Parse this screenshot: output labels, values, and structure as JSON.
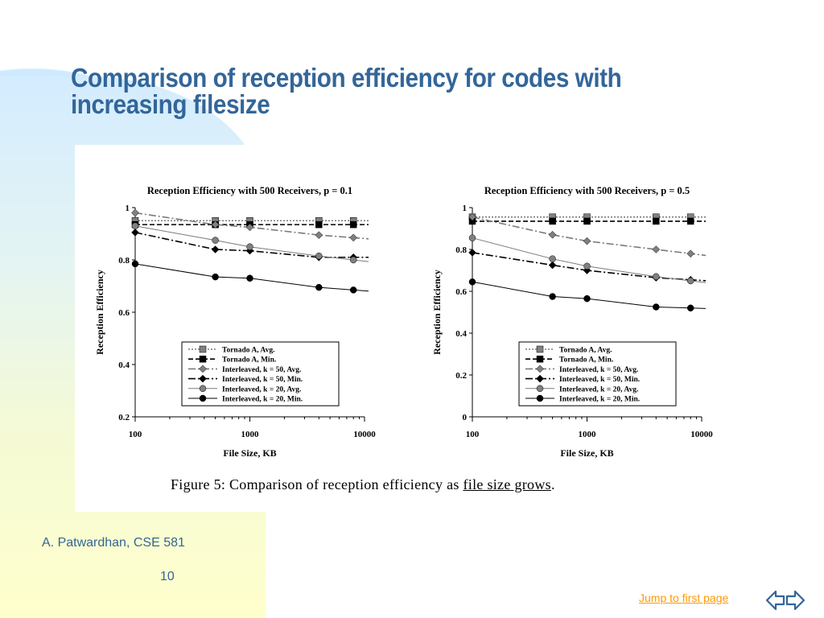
{
  "slide": {
    "title_line1": "Comparison of reception efficiency for codes with",
    "title_line2": "increasing filesize",
    "caption_prefix": "Figure 5:  Comparison of reception efficiency as ",
    "caption_link": "file size grows",
    "caption_suffix": ".",
    "author": "A. Patwardhan, CSE 581",
    "page_number": "10",
    "jump_link": "Jump to first page",
    "colors": {
      "title": "#336699",
      "link": "#ff9900",
      "nav": "#336699"
    },
    "nav_icon": "double-arrow-icon"
  },
  "chart_data": [
    {
      "type": "line",
      "title": "Reception Efficiency with 500 Receivers, p = 0.1",
      "xlabel": "File Size, KB",
      "ylabel": "Reception Efficiency",
      "xscale": "log",
      "xlim": [
        100,
        10000
      ],
      "ylim": [
        0.2,
        1
      ],
      "xticks": [
        "100",
        "1000",
        "10000"
      ],
      "yticks": [
        "0.2",
        "0.4",
        "0.6",
        "0.8",
        "1"
      ],
      "legend_position": "bottom-center",
      "x": [
        100,
        500,
        1000,
        4000,
        8000
      ],
      "series": [
        {
          "name": "Tornado A, Avg.",
          "values": [
            0.95,
            0.95,
            0.95,
            0.95,
            0.95
          ],
          "style": "dotted",
          "marker": "square",
          "color": "#808080"
        },
        {
          "name": "Tornado A, Min.",
          "values": [
            0.935,
            0.935,
            0.935,
            0.935,
            0.935
          ],
          "style": "dashed",
          "marker": "square",
          "color": "#000000"
        },
        {
          "name": "Interleaved, k = 50, Avg.",
          "values": [
            0.98,
            0.935,
            0.925,
            0.895,
            0.885
          ],
          "style": "dashdot",
          "marker": "diamond",
          "color": "#808080"
        },
        {
          "name": "Interleaved, k = 50, Min.",
          "values": [
            0.905,
            0.84,
            0.835,
            0.81,
            0.81
          ],
          "style": "dashdot",
          "marker": "diamond",
          "color": "#000000"
        },
        {
          "name": "Interleaved, k = 20, Avg.",
          "values": [
            0.93,
            0.875,
            0.85,
            0.815,
            0.8
          ],
          "style": "solid",
          "marker": "circle",
          "color": "#808080"
        },
        {
          "name": "Interleaved, k = 20, Min.",
          "values": [
            0.785,
            0.735,
            0.73,
            0.695,
            0.685
          ],
          "style": "solid",
          "marker": "circle",
          "color": "#000000"
        }
      ]
    },
    {
      "type": "line",
      "title": "Reception Efficiency with 500 Receivers, p = 0.5",
      "xlabel": "File Size, KB",
      "ylabel": "Reception Efficiency",
      "xscale": "log",
      "xlim": [
        100,
        10000
      ],
      "ylim": [
        0,
        1
      ],
      "xticks": [
        "100",
        "1000",
        "10000"
      ],
      "yticks": [
        "0",
        "0.2",
        "0.4",
        "0.6",
        "0.8",
        "1"
      ],
      "legend_position": "bottom-center",
      "x": [
        100,
        500,
        1000,
        4000,
        8000
      ],
      "series": [
        {
          "name": "Tornado A, Avg.",
          "values": [
            0.955,
            0.955,
            0.955,
            0.955,
            0.955
          ],
          "style": "dotted",
          "marker": "square",
          "color": "#808080"
        },
        {
          "name": "Tornado A, Min.",
          "values": [
            0.935,
            0.935,
            0.935,
            0.935,
            0.935
          ],
          "style": "dashed",
          "marker": "square",
          "color": "#000000"
        },
        {
          "name": "Interleaved, k = 50, Avg.",
          "values": [
            0.955,
            0.87,
            0.84,
            0.8,
            0.78
          ],
          "style": "dashdot",
          "marker": "diamond",
          "color": "#808080"
        },
        {
          "name": "Interleaved, k = 50, Min.",
          "values": [
            0.785,
            0.725,
            0.7,
            0.665,
            0.655
          ],
          "style": "dashdot",
          "marker": "diamond",
          "color": "#000000"
        },
        {
          "name": "Interleaved, k = 20, Avg.",
          "values": [
            0.855,
            0.755,
            0.72,
            0.67,
            0.65
          ],
          "style": "solid",
          "marker": "circle",
          "color": "#808080"
        },
        {
          "name": "Interleaved, k = 20, Min.",
          "values": [
            0.645,
            0.575,
            0.565,
            0.525,
            0.52
          ],
          "style": "solid",
          "marker": "circle",
          "color": "#000000"
        }
      ]
    }
  ]
}
